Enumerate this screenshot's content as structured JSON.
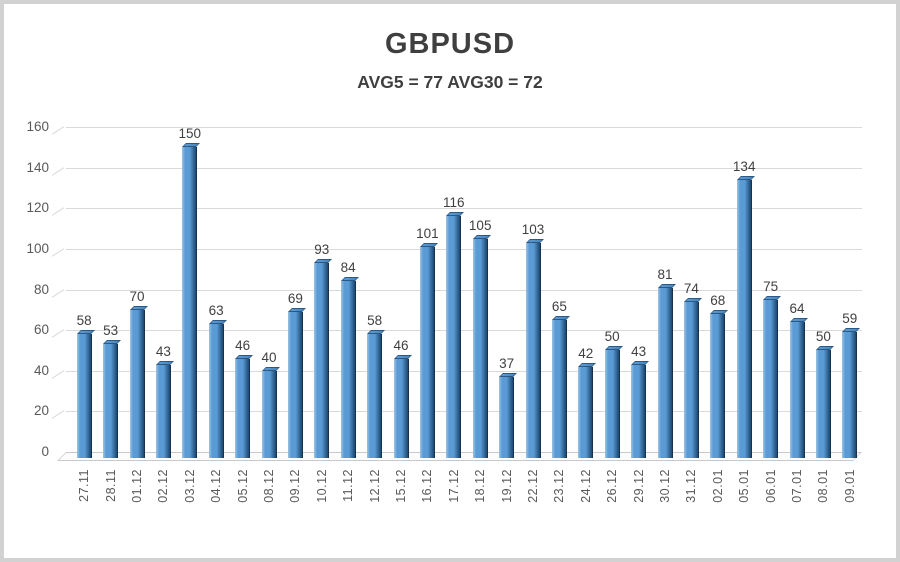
{
  "window": {
    "background": "#ffffff",
    "frame_border_color": "#d2d2d2"
  },
  "chart_data": {
    "type": "bar",
    "style": "excel-3d-column",
    "title": "GBPUSD",
    "subtitle": "AVG5 = 77 AVG30 = 72",
    "avg5": 77,
    "avg30": 72,
    "categories": [
      "27.11",
      "28.11",
      "01.12",
      "02.12",
      "03.12",
      "04.12",
      "05.12",
      "08.12",
      "09.12",
      "10.12",
      "11.12",
      "12.12",
      "15.12",
      "16.12",
      "17.12",
      "18.12",
      "19.12",
      "22.12",
      "23.12",
      "24.12",
      "26.12",
      "29.12",
      "30.12",
      "31.12",
      "02.01",
      "05.01",
      "06.01",
      "07.01",
      "08.01",
      "09.01"
    ],
    "values": [
      58,
      53,
      70,
      43,
      150,
      63,
      46,
      40,
      69,
      93,
      84,
      58,
      46,
      101,
      116,
      105,
      37,
      103,
      65,
      42,
      50,
      43,
      81,
      74,
      68,
      134,
      75,
      64,
      50,
      59
    ],
    "ylim": [
      0,
      160
    ],
    "yticks": [
      0,
      20,
      40,
      60,
      80,
      100,
      120,
      140,
      160
    ],
    "grid": true,
    "legend": false,
    "bar_labels_shown": true,
    "colors": {
      "bar_main": "#5b9bd5",
      "bar_highlight": "#9cc3e5",
      "bar_shadow": "#1f4e79",
      "bar_cap": "#4a86bd",
      "gridline": "#d9d9d9",
      "floor_border": "#c9c9c9",
      "title_text": "#3f3f3f",
      "value_label_text": "#404040",
      "tick_text": "#595959"
    }
  }
}
